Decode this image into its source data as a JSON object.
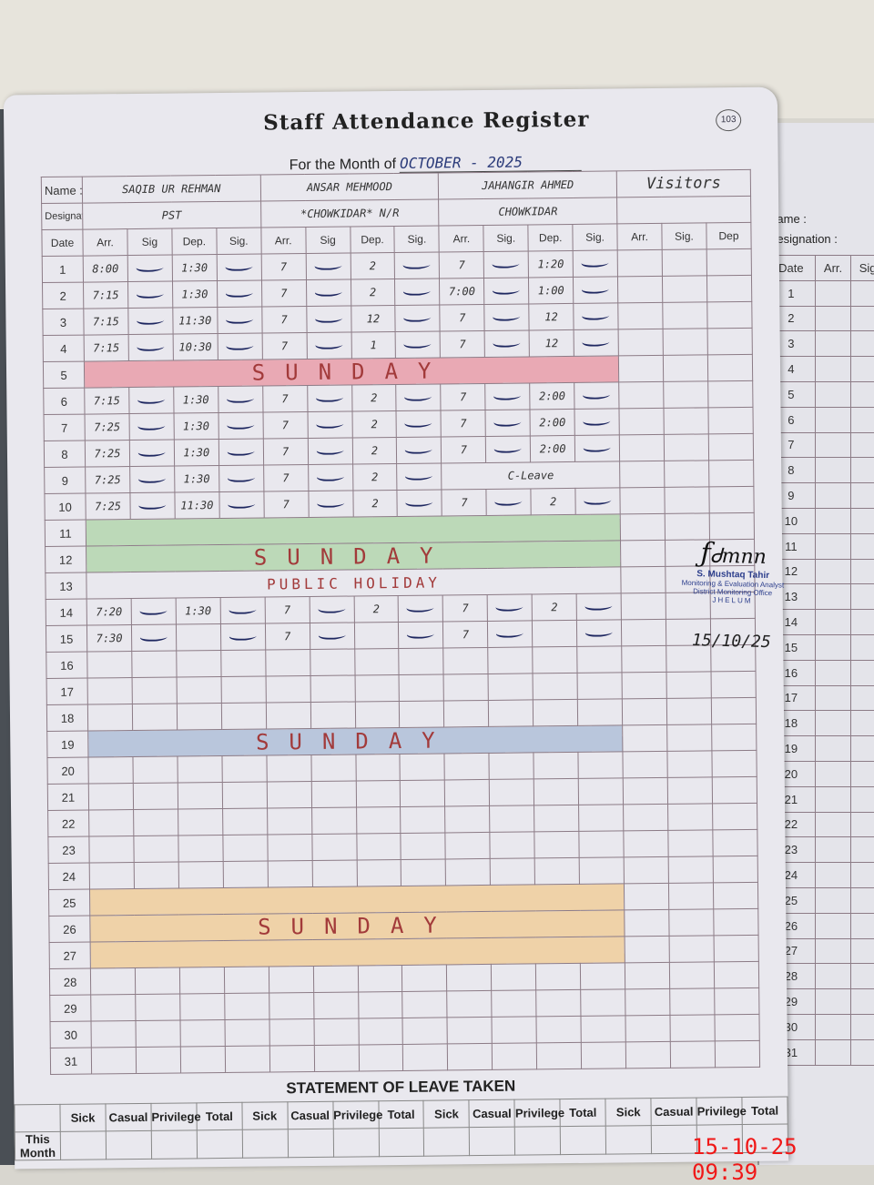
{
  "register": {
    "title": "Staff Attendance Register",
    "month_label": "For the Month of",
    "month_value": "OCTOBER - 2025",
    "page_number": "103",
    "name_label": "Name :",
    "designation_label": "Designation :",
    "staff": [
      {
        "name": "SAQIB UR REHMAN",
        "designation": "PST"
      },
      {
        "name": "ANSAR MEHMOOD",
        "designation": "*CHOWKIDAR* N/R"
      },
      {
        "name": "JAHANGIR AHMED",
        "designation": "CHOWKIDAR"
      },
      {
        "name": "Visitors",
        "designation": ""
      }
    ],
    "columns": [
      "Date",
      "Arr.",
      "Sig",
      "Dep.",
      "Sig.",
      "Arr.",
      "Sig",
      "Dep.",
      "Sig.",
      "Arr.",
      "Sig.",
      "Dep.",
      "Sig.",
      "Arr.",
      "Sig.",
      "Dep"
    ],
    "rows": [
      {
        "date": "1",
        "v": [
          "8:00",
          "1:30",
          "7",
          "2",
          "7",
          "1:20"
        ]
      },
      {
        "date": "2",
        "v": [
          "7:15",
          "1:30",
          "7",
          "2",
          "7:00",
          "1:00"
        ]
      },
      {
        "date": "3",
        "v": [
          "7:15",
          "11:30",
          "7",
          "12",
          "7",
          "12"
        ]
      },
      {
        "date": "4",
        "v": [
          "7:15",
          "10:30",
          "7",
          "1",
          "7",
          "12"
        ]
      },
      {
        "date": "5",
        "band": "SUNDAY",
        "color": "#e9a9b4"
      },
      {
        "date": "6",
        "v": [
          "7:15",
          "1:30",
          "7",
          "2",
          "7",
          "2:00"
        ]
      },
      {
        "date": "7",
        "v": [
          "7:25",
          "1:30",
          "7",
          "2",
          "7",
          "2:00"
        ]
      },
      {
        "date": "8",
        "v": [
          "7:25",
          "1:30",
          "7",
          "2",
          "7",
          "2:00"
        ]
      },
      {
        "date": "9",
        "v": [
          "7:25",
          "1:30",
          "7",
          "2"
        ],
        "note": "C-Leave"
      },
      {
        "date": "10",
        "v": [
          "7:25",
          "11:30",
          "7",
          "2",
          "7",
          "2"
        ]
      },
      {
        "date": "11",
        "band": "",
        "color": "#bcd9b8"
      },
      {
        "date": "12",
        "band": "SUNDAY",
        "color": "#bcd9b8"
      },
      {
        "date": "13",
        "band": "PUBLIC HOLIDAY",
        "color": "#e9e8ee"
      },
      {
        "date": "14",
        "v": [
          "7:20",
          "1:30",
          "7",
          "2",
          "7",
          "2"
        ]
      },
      {
        "date": "15",
        "v": [
          "7:30",
          "",
          "7",
          "",
          "7",
          ""
        ]
      },
      {
        "date": "16"
      },
      {
        "date": "17"
      },
      {
        "date": "18"
      },
      {
        "date": "19",
        "band": "SUNDAY",
        "color": "#b9c6dc"
      },
      {
        "date": "20"
      },
      {
        "date": "21"
      },
      {
        "date": "22"
      },
      {
        "date": "23"
      },
      {
        "date": "24"
      },
      {
        "date": "25",
        "band": "",
        "color": "#efd2a8"
      },
      {
        "date": "26",
        "band": "SUNDAY",
        "color": "#efd2a8"
      },
      {
        "date": "27",
        "band": "",
        "color": "#efd2a8"
      },
      {
        "date": "28"
      },
      {
        "date": "29"
      },
      {
        "date": "30"
      },
      {
        "date": "31"
      }
    ]
  },
  "stamp": {
    "signature": "S. Mushtaq",
    "name": "S. Mushtaq Tahir",
    "line1": "Monitoring & Evaluation Analyst",
    "line2": "District Monitoring Office",
    "line3": "JHELUM",
    "date": "15/10/25"
  },
  "leave": {
    "title": "STATEMENT OF LEAVE TAKEN",
    "headers": [
      "",
      "Sick",
      "Casual",
      "Privilege",
      "Total",
      "Sick",
      "Casual",
      "Privilege",
      "Total",
      "Sick",
      "Casual",
      "Privilege",
      "Total",
      "Sick",
      "Casual",
      "Privilege",
      "Total"
    ],
    "row_label": "This Month"
  },
  "right_page": {
    "name_label": "Name :",
    "designation_label": "Designation :",
    "columns": [
      "Date",
      "Arr.",
      "Sig"
    ]
  },
  "camera_timestamp": "15-10-25 09:39"
}
